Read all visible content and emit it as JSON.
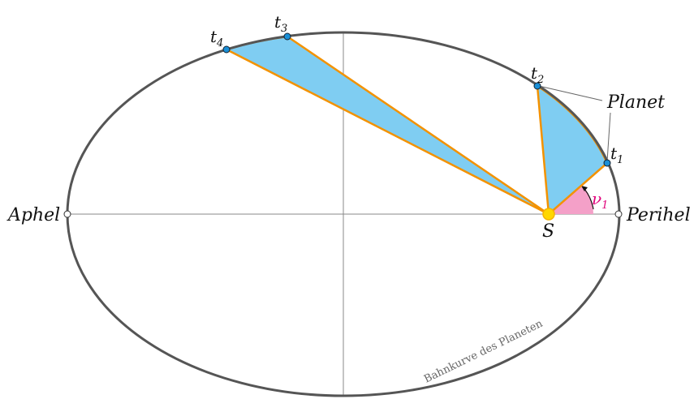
{
  "labels": {
    "aphel": "Aphel",
    "perihel": "Perihel",
    "planet": "Planet",
    "sun": "S",
    "orbit": "Bahnkurve des Planeten",
    "angle": "ν",
    "angle_sub": "1"
  },
  "points": [
    {
      "name": "t",
      "sub": "1"
    },
    {
      "name": "t",
      "sub": "2"
    },
    {
      "name": "t",
      "sub": "3"
    },
    {
      "name": "t",
      "sub": "4"
    }
  ],
  "colors": {
    "orbit": "#555555",
    "area": "#7fcdf2",
    "edge": "#f39200",
    "angle_fill": "#f4a0c8",
    "angle_text": "#e0007a",
    "planet": "#1a8fd6",
    "sun": "#ffd700"
  }
}
